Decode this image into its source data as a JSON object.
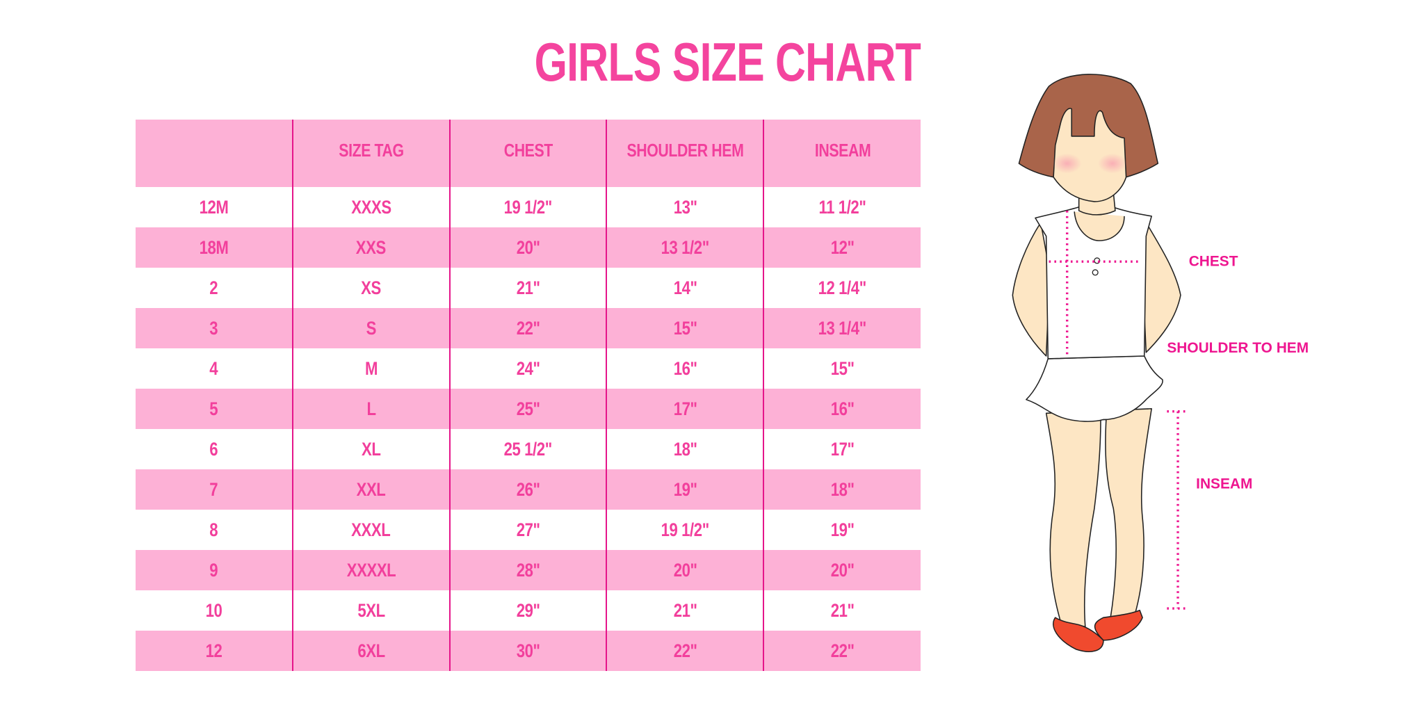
{
  "title": "GIRLS SIZE CHART",
  "table": {
    "headers": [
      "",
      "SIZE TAG",
      "CHEST",
      "SHOULDER HEM",
      "INSEAM"
    ],
    "rows": [
      [
        "12M",
        "XXXS",
        "19 1/2\"",
        "13\"",
        "11 1/2\""
      ],
      [
        "18M",
        "XXS",
        "20\"",
        "13 1/2\"",
        "12\""
      ],
      [
        "2",
        "XS",
        "21\"",
        "14\"",
        "12 1/4\""
      ],
      [
        "3",
        "S",
        "22\"",
        "15\"",
        "13 1/4\""
      ],
      [
        "4",
        "M",
        "24\"",
        "16\"",
        "15\""
      ],
      [
        "5",
        "L",
        "25\"",
        "17\"",
        "16\""
      ],
      [
        "6",
        "XL",
        "25 1/2\"",
        "18\"",
        "17\""
      ],
      [
        "7",
        "XXL",
        "26\"",
        "19\"",
        "18\""
      ],
      [
        "8",
        "XXXL",
        "27\"",
        "19 1/2\"",
        "19\""
      ],
      [
        "9",
        "XXXXL",
        "28\"",
        "20\"",
        "20\""
      ],
      [
        "10",
        "5XL",
        "29\"",
        "21\"",
        "21\""
      ],
      [
        "12",
        "6XL",
        "30\"",
        "22\"",
        "22\""
      ]
    ]
  },
  "figure": {
    "labels": {
      "chest": "CHEST",
      "shoulder_to_hem": "SHOULDER TO HEM",
      "inseam": "INSEAM"
    }
  },
  "colors": {
    "title": "#f4449e",
    "row_pink": "#fdb1d6",
    "text": "#f23f9c",
    "divider": "#e5158a",
    "measure": "#ee1690",
    "hair": "#a9644a",
    "skin": "#fde6c4",
    "shoes": "#f04a2e"
  }
}
